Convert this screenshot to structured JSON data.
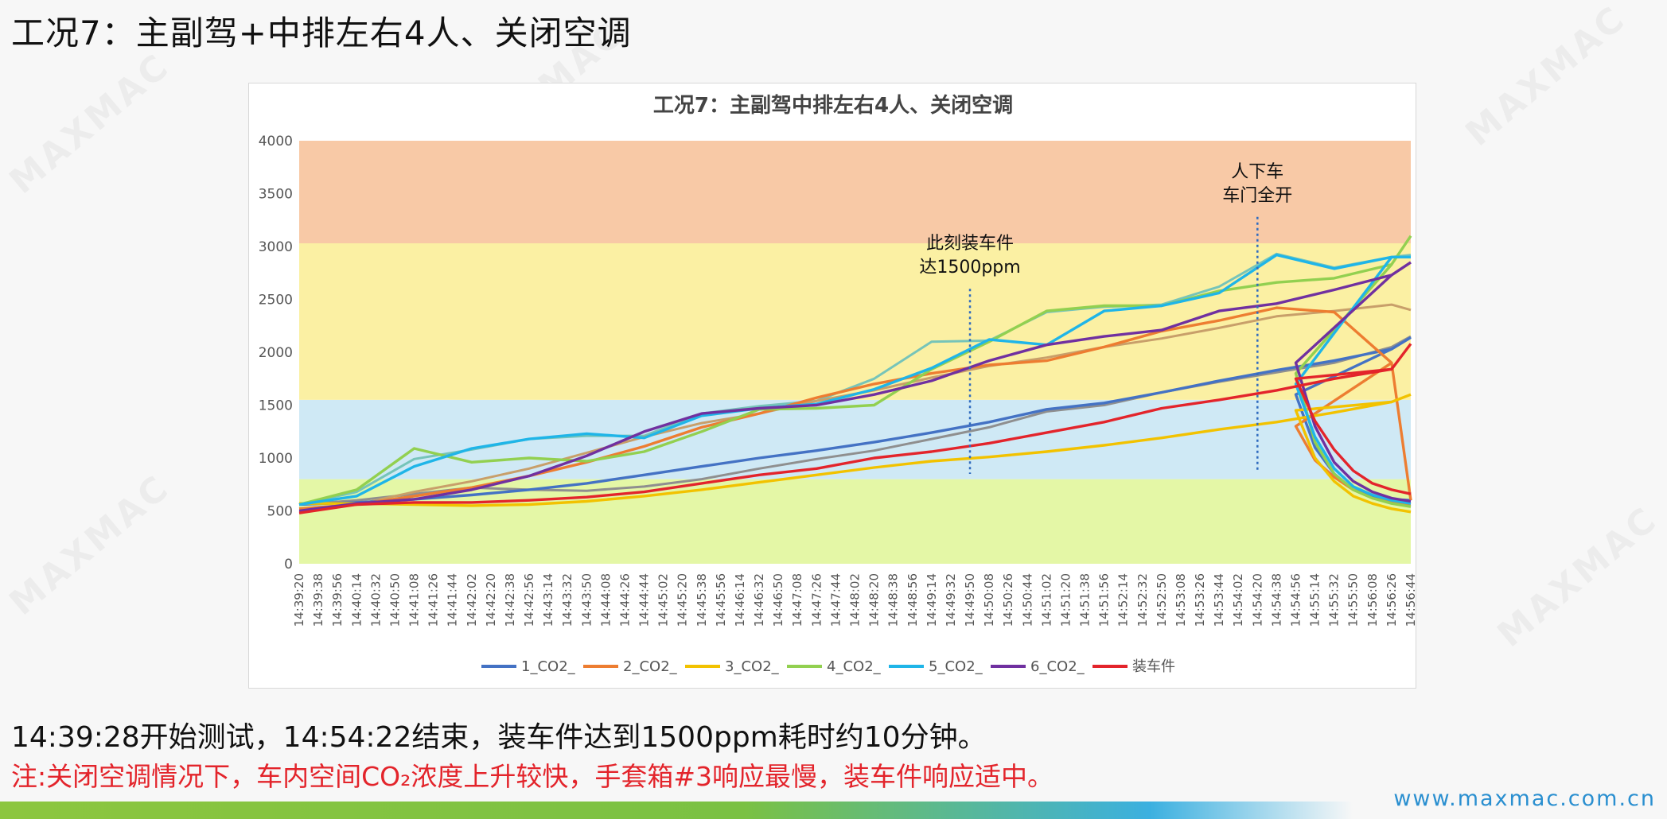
{
  "page": {
    "title": "工况7：主副驾+中排左右4人、关闭空调",
    "note_line1": "14:39:28开始测试，14:54:22结束，装车件达到1500ppm耗时约10分钟。",
    "note_line2": "注:关闭空调情况下，车内空间CO₂浓度上升较快，手套箱#3响应最慢，装车件响应适中。",
    "brand_url": "www.maxmac.com.cn",
    "watermark_text": "MAXMAC"
  },
  "chart_data": {
    "type": "line",
    "title": "工况7：主副驾中排左右4人、关闭空调",
    "xlabel": "",
    "ylabel": "",
    "ylim": [
      0,
      4000
    ],
    "yticks": [
      0,
      500,
      1000,
      1500,
      2000,
      2500,
      3000,
      3500,
      4000
    ],
    "grid": false,
    "legend_position": "bottom",
    "zones": [
      {
        "from": 0,
        "to": 800,
        "color": "#e4f7a6"
      },
      {
        "from": 800,
        "to": 1550,
        "color": "#cfe9f5"
      },
      {
        "from": 1550,
        "to": 3030,
        "color": "#fbf0a3"
      },
      {
        "from": 3030,
        "to": 4000,
        "color": "#f8c9a6"
      }
    ],
    "x_ticks": [
      "14:39:20",
      "14:39:38",
      "14:39:56",
      "14:40:14",
      "14:40:32",
      "14:40:50",
      "14:41:08",
      "14:41:26",
      "14:41:44",
      "14:42:02",
      "14:42:20",
      "14:42:38",
      "14:42:56",
      "14:43:14",
      "14:43:32",
      "14:43:50",
      "14:44:08",
      "14:44:26",
      "14:44:44",
      "14:45:02",
      "14:45:20",
      "14:45:38",
      "14:45:56",
      "14:46:14",
      "14:46:32",
      "14:46:50",
      "14:47:08",
      "14:47:26",
      "14:47:44",
      "14:48:02",
      "14:48:20",
      "14:48:38",
      "14:48:56",
      "14:49:14",
      "14:49:32",
      "14:49:50",
      "14:50:08",
      "14:50:26",
      "14:50:44",
      "14:51:02",
      "14:51:20",
      "14:51:38",
      "14:51:56",
      "14:52:14",
      "14:52:32",
      "14:52:50",
      "14:53:08",
      "14:53:26",
      "14:53:44",
      "14:54:02",
      "14:54:20",
      "14:54:38",
      "14:54:56",
      "14:55:14",
      "14:55:32",
      "14:55:50",
      "14:56:08",
      "14:56:26",
      "14:56:44"
    ],
    "x_sample_index": [
      0,
      3,
      6,
      9,
      12,
      15,
      18,
      21,
      24,
      27,
      30,
      33,
      36,
      39,
      42,
      45,
      48,
      51,
      54,
      57,
      58
    ],
    "series": [
      {
        "name": "1_CO2_",
        "color": "#4472c4",
        "values": [
          560,
          580,
          610,
          650,
          700,
          760,
          840,
          920,
          1000,
          1070,
          1150,
          1240,
          1340,
          1460,
          1520,
          1620,
          1730,
          1830,
          1920,
          2030,
          2140
        ]
      },
      {
        "name": "2_CO2_",
        "color": "#ed7d31",
        "values": [
          520,
          560,
          640,
          720,
          830,
          960,
          1110,
          1290,
          1420,
          1570,
          1700,
          1800,
          1880,
          1920,
          2050,
          2200,
          2300,
          2420,
          2380,
          1900,
          600
        ]
      },
      {
        "name": "3_CO2_",
        "color": "#f2c200",
        "values": [
          570,
          570,
          560,
          550,
          560,
          590,
          640,
          700,
          770,
          840,
          910,
          970,
          1010,
          1060,
          1120,
          1190,
          1270,
          1340,
          1430,
          1530,
          1600
        ]
      },
      {
        "name": "4_CO2_",
        "color": "#92d050",
        "values": [
          560,
          700,
          1090,
          960,
          1000,
          970,
          1060,
          1250,
          1460,
          1470,
          1500,
          1840,
          2100,
          2390,
          2440,
          2440,
          2580,
          2660,
          2700,
          2830,
          3100
        ]
      },
      {
        "name": "5_CO2_",
        "color": "#1fb5e8",
        "values": [
          560,
          640,
          920,
          1090,
          1180,
          1230,
          1190,
          1400,
          1470,
          1510,
          1650,
          1850,
          2120,
          2070,
          2390,
          2440,
          2560,
          2920,
          2790,
          2900,
          2900
        ]
      },
      {
        "name": "6_CO2_",
        "color": "#7030a0",
        "values": [
          500,
          570,
          610,
          700,
          830,
          1020,
          1250,
          1420,
          1470,
          1500,
          1600,
          1730,
          1920,
          2070,
          2150,
          2210,
          2390,
          2460,
          2590,
          2730,
          2850
        ]
      },
      {
        "name": "装车件",
        "color": "#e3242b",
        "values": [
          480,
          560,
          580,
          580,
          600,
          630,
          680,
          760,
          840,
          900,
          1000,
          1060,
          1140,
          1240,
          1340,
          1470,
          1550,
          1640,
          1750,
          1840,
          2080
        ]
      }
    ],
    "extra_series_overlays": [
      {
        "color": "#76c4b9",
        "values": [
          560,
          680,
          990,
          1080,
          1180,
          1210,
          1210,
          1420,
          1490,
          1540,
          1750,
          2100,
          2110,
          2380,
          2430,
          2450,
          2620,
          2930,
          2800,
          2900,
          2920
        ]
      },
      {
        "color": "#8f8f8f",
        "values": [
          560,
          600,
          660,
          720,
          700,
          690,
          730,
          800,
          900,
          990,
          1070,
          1180,
          1290,
          1440,
          1500,
          1620,
          1720,
          1810,
          1900,
          2050,
          2150
        ]
      },
      {
        "color": "#c89f6a",
        "values": [
          520,
          560,
          680,
          780,
          900,
          1050,
          1200,
          1330,
          1420,
          1540,
          1640,
          1760,
          1870,
          1950,
          2050,
          2130,
          2230,
          2340,
          2390,
          2450,
          2400
        ]
      }
    ],
    "tail": {
      "x_index": [
        52,
        53,
        54,
        55,
        56,
        57,
        58
      ],
      "values_1": [
        1600,
        1100,
        850,
        700,
        640,
        610,
        600
      ],
      "values_2": [
        1300,
        980,
        820,
        700,
        620,
        580,
        560
      ],
      "values_3": [
        1450,
        1000,
        780,
        640,
        570,
        520,
        490
      ],
      "values_4": [
        1800,
        1150,
        850,
        700,
        620,
        570,
        540
      ],
      "values_5": [
        1700,
        1200,
        900,
        730,
        650,
        600,
        570
      ],
      "values_6": [
        1900,
        1300,
        960,
        780,
        680,
        620,
        590
      ],
      "values_7": [
        1750,
        1350,
        1080,
        880,
        760,
        700,
        660
      ]
    },
    "annotations": [
      {
        "text_line1": "此刻装车件",
        "text_line2": "达1500ppm",
        "x_index": 35,
        "y_top": 2600,
        "y_bottom": 850
      },
      {
        "text_line1": "人下车",
        "text_line2": "车门全开",
        "x_index": 50,
        "y_top": 3280,
        "y_bottom": 870
      }
    ]
  }
}
